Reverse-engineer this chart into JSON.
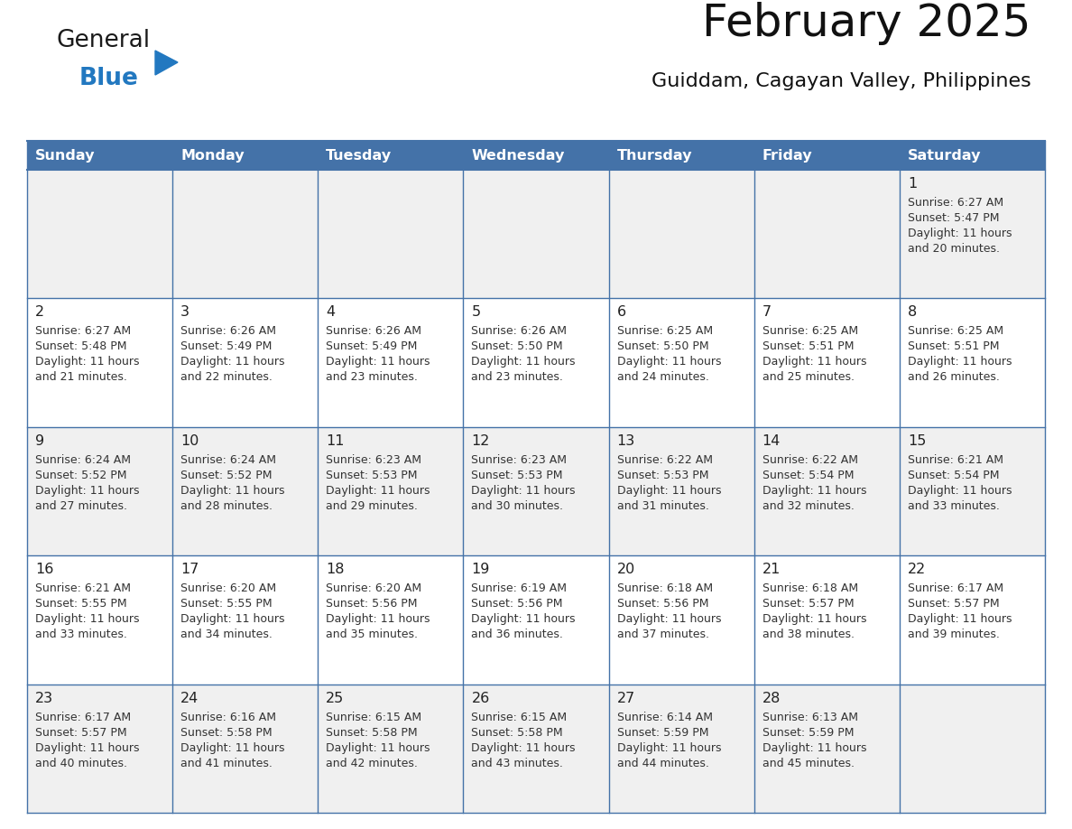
{
  "title": "February 2025",
  "subtitle": "Guiddam, Cagayan Valley, Philippines",
  "header_bg": "#4472A8",
  "header_text_color": "#FFFFFF",
  "weekdays": [
    "Sunday",
    "Monday",
    "Tuesday",
    "Wednesday",
    "Thursday",
    "Friday",
    "Saturday"
  ],
  "bg_color": "#FFFFFF",
  "cell_bg_row0": "#F0F0F0",
  "cell_bg_row1": "#FFFFFF",
  "cell_bg_row2": "#F0F0F0",
  "cell_bg_row3": "#FFFFFF",
  "cell_bg_row4": "#F0F0F0",
  "grid_line_color": "#4472A8",
  "text_color": "#333333",
  "logo_general_color": "#1A1A1A",
  "logo_blue_color": "#2278C0",
  "logo_triangle_color": "#2278C0",
  "days": [
    {
      "day": 1,
      "col": 6,
      "row": 0,
      "sunrise": "6:27 AM",
      "sunset": "5:47 PM",
      "daylight": "11 hours and 20 minutes."
    },
    {
      "day": 2,
      "col": 0,
      "row": 1,
      "sunrise": "6:27 AM",
      "sunset": "5:48 PM",
      "daylight": "11 hours and 21 minutes."
    },
    {
      "day": 3,
      "col": 1,
      "row": 1,
      "sunrise": "6:26 AM",
      "sunset": "5:49 PM",
      "daylight": "11 hours and 22 minutes."
    },
    {
      "day": 4,
      "col": 2,
      "row": 1,
      "sunrise": "6:26 AM",
      "sunset": "5:49 PM",
      "daylight": "11 hours and 23 minutes."
    },
    {
      "day": 5,
      "col": 3,
      "row": 1,
      "sunrise": "6:26 AM",
      "sunset": "5:50 PM",
      "daylight": "11 hours and 23 minutes."
    },
    {
      "day": 6,
      "col": 4,
      "row": 1,
      "sunrise": "6:25 AM",
      "sunset": "5:50 PM",
      "daylight": "11 hours and 24 minutes."
    },
    {
      "day": 7,
      "col": 5,
      "row": 1,
      "sunrise": "6:25 AM",
      "sunset": "5:51 PM",
      "daylight": "11 hours and 25 minutes."
    },
    {
      "day": 8,
      "col": 6,
      "row": 1,
      "sunrise": "6:25 AM",
      "sunset": "5:51 PM",
      "daylight": "11 hours and 26 minutes."
    },
    {
      "day": 9,
      "col": 0,
      "row": 2,
      "sunrise": "6:24 AM",
      "sunset": "5:52 PM",
      "daylight": "11 hours and 27 minutes."
    },
    {
      "day": 10,
      "col": 1,
      "row": 2,
      "sunrise": "6:24 AM",
      "sunset": "5:52 PM",
      "daylight": "11 hours and 28 minutes."
    },
    {
      "day": 11,
      "col": 2,
      "row": 2,
      "sunrise": "6:23 AM",
      "sunset": "5:53 PM",
      "daylight": "11 hours and 29 minutes."
    },
    {
      "day": 12,
      "col": 3,
      "row": 2,
      "sunrise": "6:23 AM",
      "sunset": "5:53 PM",
      "daylight": "11 hours and 30 minutes."
    },
    {
      "day": 13,
      "col": 4,
      "row": 2,
      "sunrise": "6:22 AM",
      "sunset": "5:53 PM",
      "daylight": "11 hours and 31 minutes."
    },
    {
      "day": 14,
      "col": 5,
      "row": 2,
      "sunrise": "6:22 AM",
      "sunset": "5:54 PM",
      "daylight": "11 hours and 32 minutes."
    },
    {
      "day": 15,
      "col": 6,
      "row": 2,
      "sunrise": "6:21 AM",
      "sunset": "5:54 PM",
      "daylight": "11 hours and 33 minutes."
    },
    {
      "day": 16,
      "col": 0,
      "row": 3,
      "sunrise": "6:21 AM",
      "sunset": "5:55 PM",
      "daylight": "11 hours and 33 minutes."
    },
    {
      "day": 17,
      "col": 1,
      "row": 3,
      "sunrise": "6:20 AM",
      "sunset": "5:55 PM",
      "daylight": "11 hours and 34 minutes."
    },
    {
      "day": 18,
      "col": 2,
      "row": 3,
      "sunrise": "6:20 AM",
      "sunset": "5:56 PM",
      "daylight": "11 hours and 35 minutes."
    },
    {
      "day": 19,
      "col": 3,
      "row": 3,
      "sunrise": "6:19 AM",
      "sunset": "5:56 PM",
      "daylight": "11 hours and 36 minutes."
    },
    {
      "day": 20,
      "col": 4,
      "row": 3,
      "sunrise": "6:18 AM",
      "sunset": "5:56 PM",
      "daylight": "11 hours and 37 minutes."
    },
    {
      "day": 21,
      "col": 5,
      "row": 3,
      "sunrise": "6:18 AM",
      "sunset": "5:57 PM",
      "daylight": "11 hours and 38 minutes."
    },
    {
      "day": 22,
      "col": 6,
      "row": 3,
      "sunrise": "6:17 AM",
      "sunset": "5:57 PM",
      "daylight": "11 hours and 39 minutes."
    },
    {
      "day": 23,
      "col": 0,
      "row": 4,
      "sunrise": "6:17 AM",
      "sunset": "5:57 PM",
      "daylight": "11 hours and 40 minutes."
    },
    {
      "day": 24,
      "col": 1,
      "row": 4,
      "sunrise": "6:16 AM",
      "sunset": "5:58 PM",
      "daylight": "11 hours and 41 minutes."
    },
    {
      "day": 25,
      "col": 2,
      "row": 4,
      "sunrise": "6:15 AM",
      "sunset": "5:58 PM",
      "daylight": "11 hours and 42 minutes."
    },
    {
      "day": 26,
      "col": 3,
      "row": 4,
      "sunrise": "6:15 AM",
      "sunset": "5:58 PM",
      "daylight": "11 hours and 43 minutes."
    },
    {
      "day": 27,
      "col": 4,
      "row": 4,
      "sunrise": "6:14 AM",
      "sunset": "5:59 PM",
      "daylight": "11 hours and 44 minutes."
    },
    {
      "day": 28,
      "col": 5,
      "row": 4,
      "sunrise": "6:13 AM",
      "sunset": "5:59 PM",
      "daylight": "11 hours and 45 minutes."
    }
  ]
}
